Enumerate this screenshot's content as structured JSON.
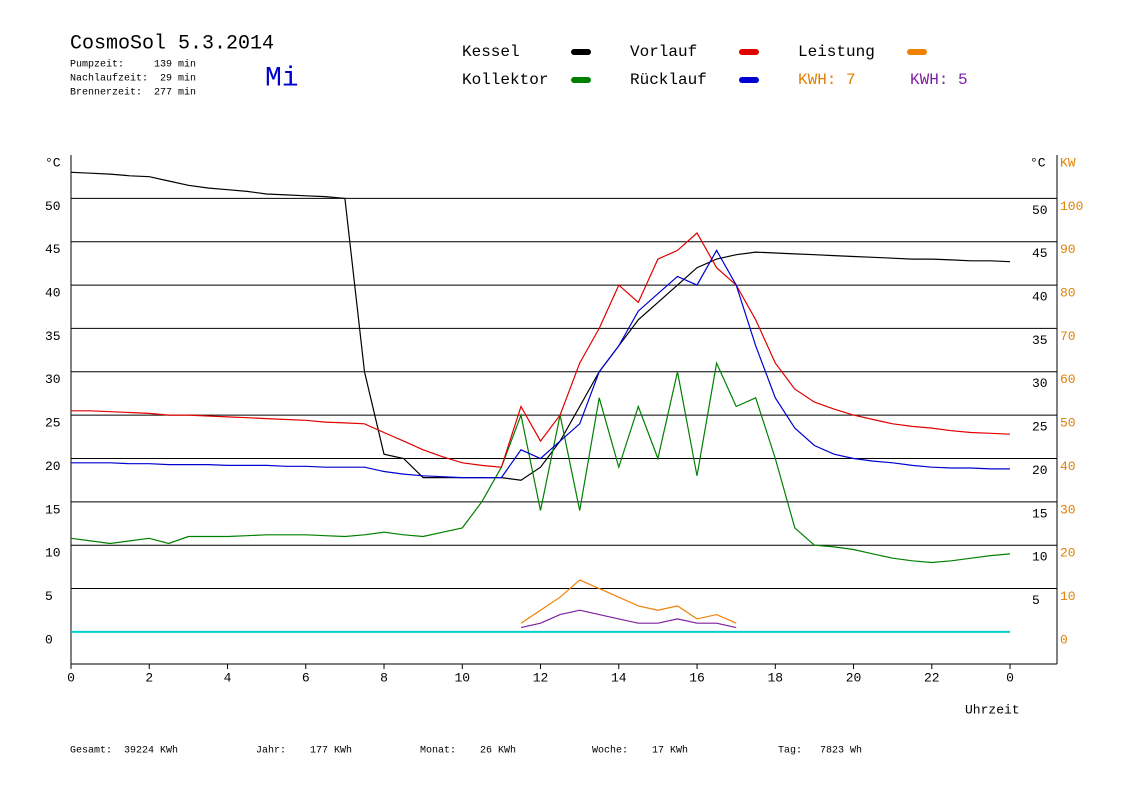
{
  "chart_data": {
    "type": "line",
    "title": "CosmoSol 5.3.2014",
    "weekday": "Mi",
    "info": [
      "Pumpzeit:     139 min",
      "Nachlaufzeit:  29 min",
      "Brennerzeit:  277 min"
    ],
    "annotations": [
      {
        "text": "KWH: 7",
        "color": "#e08000"
      },
      {
        "text": "KWH: 5",
        "color": "#8020a0"
      }
    ],
    "ylabel": "°C",
    "y2label_c": "°C",
    "y2label": "KW",
    "xlabel": "Uhrzeit",
    "footer": [
      "Gesamt:  39224 KWh",
      "Jahr:    177 KWh",
      "Monat:    26 KWh",
      "Woche:    17 KWh",
      "Tag:   7823 Wh"
    ],
    "x": [
      0,
      0.5,
      1,
      1.5,
      2,
      2.5,
      3,
      3.5,
      4,
      4.5,
      5,
      5.5,
      6,
      6.5,
      7,
      7.5,
      8,
      8.5,
      9,
      9.5,
      10,
      10.5,
      11,
      11.5,
      12,
      12.5,
      13,
      13.5,
      14,
      14.5,
      15,
      15.5,
      16,
      16.5,
      17,
      17.5,
      18,
      18.5,
      19,
      19.5,
      20,
      20.5,
      21,
      21.5,
      22,
      22.5,
      23,
      23.5,
      24
    ],
    "series": [
      {
        "name": "Kessel",
        "color": "#000000",
        "values": [
          53,
          52.9,
          52.8,
          52.6,
          52.5,
          52,
          51.5,
          51.2,
          51,
          50.8,
          50.5,
          50.4,
          50.3,
          50.2,
          50,
          30,
          20.5,
          20,
          17.8,
          17.8,
          17.8,
          17.8,
          17.8,
          17.5,
          19,
          22,
          26,
          30,
          33,
          36,
          38,
          40,
          42,
          43,
          43.5,
          43.8,
          43.7,
          43.6,
          43.5,
          43.4,
          43.3,
          43.2,
          43.1,
          43,
          43,
          42.9,
          42.8,
          42.8,
          42.7
        ]
      },
      {
        "name": "Kollektor",
        "color": "#008000",
        "values": [
          10.8,
          10.5,
          10.2,
          10.5,
          10.8,
          10.2,
          11,
          11,
          11,
          11.1,
          11.2,
          11.2,
          11.2,
          11.1,
          11,
          11.2,
          11.5,
          11.2,
          11,
          11.5,
          12,
          15,
          19,
          25,
          14,
          25,
          14,
          27,
          19,
          26,
          20,
          30,
          18,
          31,
          26,
          27,
          20,
          12,
          10,
          9.8,
          9.5,
          9,
          8.5,
          8.2,
          8,
          8.2,
          8.5,
          8.8,
          9
        ]
      },
      {
        "name": "Vorlauf",
        "color": "#e00000",
        "values": [
          25.5,
          25.5,
          25.4,
          25.3,
          25.2,
          25,
          25,
          24.9,
          24.8,
          24.7,
          24.6,
          24.5,
          24.4,
          24.2,
          24.1,
          24,
          23,
          22,
          21,
          20.2,
          19.5,
          19.2,
          19,
          26,
          22,
          25,
          31,
          35,
          40,
          38,
          43,
          44,
          46,
          42,
          40,
          36,
          31,
          28,
          26.5,
          25.7,
          25,
          24.5,
          24,
          23.7,
          23.5,
          23.2,
          23,
          22.9,
          22.8
        ]
      },
      {
        "name": "Rücklauf",
        "color": "#0000d0",
        "values": [
          19.5,
          19.5,
          19.5,
          19.4,
          19.4,
          19.3,
          19.3,
          19.3,
          19.2,
          19.2,
          19.2,
          19.1,
          19.1,
          19,
          19,
          19,
          18.5,
          18.2,
          18,
          17.9,
          17.8,
          17.8,
          17.8,
          21,
          20,
          22,
          24,
          30,
          33,
          37,
          39,
          41,
          40,
          44,
          40,
          33,
          27,
          23.5,
          21.5,
          20.5,
          20,
          19.7,
          19.5,
          19.2,
          19,
          18.9,
          18.9,
          18.8,
          18.8
        ]
      },
      {
        "name": "Leistung",
        "color": "#f08000",
        "axis": "y2",
        "values": [
          null,
          null,
          null,
          null,
          null,
          null,
          null,
          null,
          null,
          null,
          null,
          null,
          null,
          null,
          null,
          null,
          null,
          null,
          null,
          null,
          null,
          null,
          null,
          2,
          5,
          8,
          12,
          10,
          8,
          6,
          5,
          6,
          3,
          4,
          2,
          null,
          null,
          null,
          null,
          null,
          null,
          null,
          null,
          null,
          null,
          null,
          null,
          null,
          null
        ]
      },
      {
        "color": "#8020a0",
        "axis": "y2",
        "values": [
          null,
          null,
          null,
          null,
          null,
          null,
          null,
          null,
          null,
          null,
          null,
          null,
          null,
          null,
          null,
          null,
          null,
          null,
          null,
          null,
          null,
          null,
          null,
          1,
          2,
          4,
          5,
          4,
          3,
          2,
          2,
          3,
          2,
          2,
          1,
          null,
          null,
          null,
          null,
          null,
          null,
          null,
          null,
          null,
          null,
          null,
          null,
          null,
          null
        ]
      }
    ],
    "xlim": [
      0,
      25.2
    ],
    "xticks": [
      0,
      2,
      4,
      6,
      8,
      10,
      12,
      14,
      16,
      18,
      20,
      22,
      {
        "value": 24,
        "label": "0"
      }
    ],
    "ylim": [
      -3.7,
      55
    ],
    "yticks": [
      0,
      5,
      10,
      15,
      20,
      25,
      30,
      35,
      40,
      45,
      50
    ],
    "y2lim": [
      -7.4,
      110
    ],
    "y2ticks": [
      0,
      10,
      20,
      30,
      40,
      50,
      60,
      70,
      80,
      90,
      100
    ],
    "grid": true
  }
}
